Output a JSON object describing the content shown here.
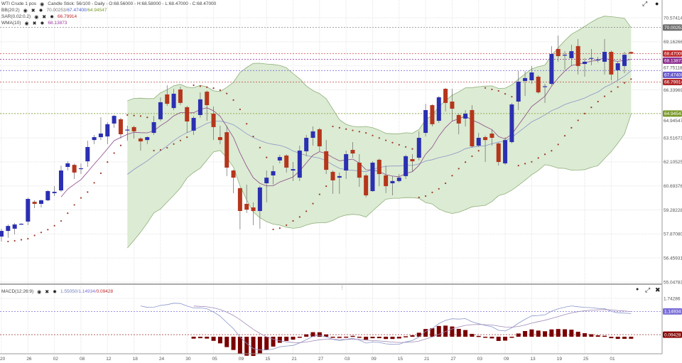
{
  "header": {
    "instrument": "WTI Crude 1 pos",
    "chart_info": "Candle Stick: 56/100 - Daily - O:68.56000 - H:68.58000 - L:68.47000 - C:68.47000",
    "indicators": [
      {
        "name": "BB(20:2)",
        "values": [
          "70.00253/",
          "67.47400/",
          "64.94547"
        ],
        "colors": [
          "#777777",
          "#4a5ec8",
          "#7a9a2a"
        ]
      },
      {
        "name": "SAR(0.02:0.2)",
        "values": [
          "66.79914"
        ],
        "colors": [
          "#c0282a"
        ]
      },
      {
        "name": "WMA(10)",
        "values": [
          "68.13873"
        ],
        "colors": [
          "#9b3aa0"
        ]
      }
    ],
    "macd": {
      "name": "MACD(12:26:9)",
      "values": [
        "1.55050/",
        "1.14934/",
        "0.09428"
      ],
      "colors": [
        "#6f7fb8",
        "#7b6fd6",
        "#c0282a"
      ]
    }
  },
  "icons": {
    "eye": "eye-icon",
    "remove": "close-icon",
    "settings": "gear-icon",
    "expand": "expand-icon",
    "pin": "pin-icon"
  },
  "chart_data": {
    "type": "candlestick",
    "title": "WTI Crude 1 pos",
    "ylim": [
      55.04783,
      70.57414
    ],
    "y_ticks": [
      "70.57414",
      "69.16266",
      "67.75118",
      "66.33969",
      "64.94547",
      "63.51673",
      "62.10525",
      "60.69376",
      "59.28228",
      "57.87080",
      "56.45931",
      "55.04783"
    ],
    "x_tick_labels": [
      "20",
      "26",
      "02",
      "08",
      "12",
      "18",
      "24",
      "30",
      "05",
      "09",
      "15",
      "21",
      "27",
      "03",
      "09",
      "15",
      "21",
      "27",
      "03",
      "09",
      "13",
      "19",
      "25",
      "01"
    ],
    "grid": true,
    "colors": {
      "up": "#2b2fb2",
      "down": "#b5361c",
      "bb_fill": "#dcebd3",
      "bb_line": "#8fb07a",
      "bb_mid": "#8a96c8",
      "wma": "#8a4a8a",
      "sar": "#9b3a2a",
      "macd_hist": "#7a0000",
      "macd_line": "#8a96c8",
      "signal_line": "#a08ab8"
    },
    "ohlc": [
      [
        57.72,
        58.18,
        57.43,
        58.05
      ],
      [
        58.05,
        58.43,
        57.64,
        58.34
      ],
      [
        58.18,
        58.51,
        57.84,
        58.43
      ],
      [
        58.45,
        58.5,
        58.4,
        58.47
      ],
      [
        58.6,
        60.0,
        58.39,
        59.93
      ],
      [
        59.76,
        59.85,
        59.39,
        59.64
      ],
      [
        59.64,
        59.89,
        59.43,
        59.85
      ],
      [
        59.85,
        60.45,
        59.8,
        60.39
      ],
      [
        60.27,
        60.68,
        60.1,
        60.35
      ],
      [
        60.43,
        61.89,
        60.35,
        61.6
      ],
      [
        61.81,
        62.14,
        61.6,
        62.02
      ],
      [
        61.93,
        62.0,
        61.1,
        61.48
      ],
      [
        61.69,
        62.02,
        61.39,
        61.73
      ],
      [
        62.14,
        63.35,
        61.81,
        62.98
      ],
      [
        63.39,
        63.69,
        63.15,
        63.56
      ],
      [
        63.56,
        64.73,
        63.39,
        63.77
      ],
      [
        63.6,
        64.44,
        63.15,
        64.32
      ],
      [
        64.36,
        64.86,
        64.11,
        64.81
      ],
      [
        64.61,
        64.7,
        63.48,
        63.73
      ],
      [
        63.96,
        64.23,
        63.35,
        64.0
      ],
      [
        64.15,
        64.23,
        63.48,
        63.9
      ],
      [
        63.48,
        63.56,
        62.77,
        63.31
      ],
      [
        63.39,
        63.6,
        63.15,
        63.56
      ],
      [
        63.81,
        64.81,
        63.7,
        64.44
      ],
      [
        64.61,
        65.9,
        64.5,
        65.61
      ],
      [
        66.07,
        66.61,
        65.4,
        65.52
      ],
      [
        65.27,
        66.4,
        65.15,
        66.11
      ],
      [
        66.36,
        66.53,
        65.45,
        65.57
      ],
      [
        65.32,
        65.4,
        63.81,
        64.48
      ],
      [
        63.94,
        64.8,
        63.69,
        64.69
      ],
      [
        64.86,
        66.19,
        64.7,
        65.78
      ],
      [
        66.23,
        66.3,
        64.52,
        65.44
      ],
      [
        64.94,
        65.36,
        63.39,
        64.15
      ],
      [
        63.56,
        64.23,
        63.15,
        63.39
      ],
      [
        63.85,
        64.23,
        61.27,
        61.77
      ],
      [
        61.6,
        61.65,
        60.27,
        61.18
      ],
      [
        60.56,
        60.6,
        58.14,
        59.22
      ],
      [
        59.64,
        60.77,
        59.1,
        59.3
      ],
      [
        59.43,
        59.73,
        58.39,
        59.22
      ],
      [
        59.22,
        60.7,
        58.18,
        60.6
      ],
      [
        60.85,
        61.6,
        59.73,
        61.18
      ],
      [
        61.31,
        61.89,
        60.77,
        61.56
      ],
      [
        62.19,
        62.52,
        62.02,
        62.39
      ],
      [
        62.48,
        62.55,
        61.48,
        61.77
      ],
      [
        61.6,
        62.1,
        60.98,
        61.68
      ],
      [
        61.18,
        63.06,
        60.98,
        62.77
      ],
      [
        62.73,
        63.69,
        62.44,
        63.52
      ],
      [
        63.52,
        64.19,
        63.06,
        63.9
      ],
      [
        64.02,
        64.1,
        62.73,
        63.02
      ],
      [
        62.73,
        63.39,
        61.39,
        61.64
      ],
      [
        61.52,
        61.6,
        60.23,
        61.02
      ],
      [
        61.18,
        61.48,
        60.23,
        61.27
      ],
      [
        61.6,
        62.77,
        61.1,
        62.56
      ],
      [
        62.81,
        63.27,
        62.35,
        62.6
      ],
      [
        62.06,
        62.56,
        60.64,
        61.18
      ],
      [
        61.31,
        61.4,
        60.02,
        60.14
      ],
      [
        60.39,
        62.15,
        60.35,
        62.06
      ],
      [
        62.23,
        62.3,
        60.68,
        61.39
      ],
      [
        61.31,
        61.89,
        60.27,
        60.68
      ],
      [
        60.85,
        61.27,
        60.14,
        60.98
      ],
      [
        60.98,
        61.39,
        60.9,
        61.18
      ],
      [
        61.27,
        62.52,
        61.1,
        62.44
      ],
      [
        62.27,
        62.56,
        61.52,
        62.14
      ],
      [
        62.35,
        63.9,
        62.2,
        63.52
      ],
      [
        63.81,
        65.52,
        63.6,
        65.15
      ],
      [
        65.44,
        65.5,
        64.19,
        64.32
      ],
      [
        64.52,
        65.98,
        64.4,
        65.9
      ],
      [
        66.4,
        66.45,
        65.07,
        65.57
      ],
      [
        65.65,
        66.4,
        64.52,
        65.23
      ],
      [
        64.86,
        64.95,
        63.73,
        64.36
      ],
      [
        64.65,
        65.15,
        64.19,
        64.94
      ],
      [
        65.15,
        65.44,
        62.94,
        63.02
      ],
      [
        63.06,
        63.81,
        62.98,
        63.52
      ],
      [
        63.56,
        63.65,
        62.1,
        63.39
      ],
      [
        63.77,
        64.02,
        63.06,
        63.52
      ],
      [
        63.19,
        63.25,
        61.89,
        62.1
      ],
      [
        62.02,
        63.56,
        61.93,
        63.39
      ],
      [
        63.27,
        65.57,
        63.19,
        65.48
      ],
      [
        65.65,
        67.44,
        65.15,
        66.82
      ],
      [
        66.86,
        67.44,
        65.98,
        67.03
      ],
      [
        66.9,
        67.74,
        66.69,
        67.36
      ],
      [
        67.11,
        67.2,
        66.11,
        66.19
      ],
      [
        66.5,
        66.69,
        65.57,
        66.55
      ],
      [
        66.69,
        68.91,
        66.6,
        68.45
      ],
      [
        68.74,
        69.53,
        67.99,
        68.32
      ],
      [
        68.36,
        68.61,
        67.53,
        68.4
      ],
      [
        68.2,
        68.99,
        67.74,
        68.61
      ],
      [
        68.91,
        69.32,
        67.24,
        67.74
      ],
      [
        67.86,
        68.2,
        67.11,
        67.99
      ],
      [
        68.18,
        68.74,
        67.78,
        68.21
      ],
      [
        68.1,
        68.28,
        67.95,
        68.12
      ],
      [
        67.99,
        69.32,
        67.24,
        68.57
      ],
      [
        68.57,
        68.65,
        66.9,
        67.24
      ],
      [
        67.49,
        68.0,
        66.9,
        67.9
      ],
      [
        67.74,
        68.57,
        67.32,
        68.4
      ],
      [
        68.56,
        68.58,
        68.47,
        68.47
      ]
    ],
    "price_badges": [
      {
        "label": "70.00253",
        "value": 70.00253,
        "color": "#6e6e6e"
      },
      {
        "label": "68.47000",
        "value": 68.47,
        "color": "#c0282a"
      },
      {
        "label": "68.13873",
        "value": 68.13873,
        "color": "#8b2c8f"
      },
      {
        "label": "67.47400",
        "value": 67.474,
        "color": "#6a5acd"
      },
      {
        "label": "66.79914",
        "value": 66.79914,
        "color": "#b0282a"
      },
      {
        "label": "64.94547",
        "value": 64.94547,
        "color": "#7a9a2a"
      }
    ],
    "macd_axis": {
      "ylim": [
        -0.9,
        2.2
      ],
      "ticks": [
        "1.74286"
      ],
      "tick_values": [
        1.74286
      ],
      "badges": [
        {
          "label": "1.14934",
          "value": 1.14934,
          "color": "#7b6fd6"
        },
        {
          "label": "0.09428",
          "value": 0.09428,
          "color": "#8a0a0a"
        }
      ]
    }
  }
}
